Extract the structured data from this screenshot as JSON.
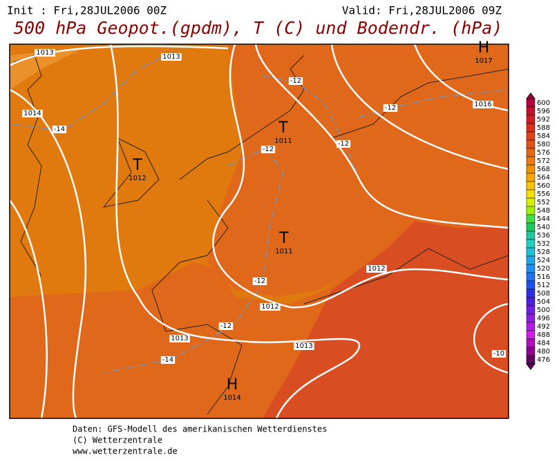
{
  "header": {
    "init": "Init : Fri,28JUL2006 00Z",
    "valid": "Valid: Fri,28JUL2006 09Z",
    "title": "500 hPa Geopot.(gpdm), T (C) und Bodendr. (hPa)"
  },
  "isobar_labels": [
    "1013",
    "1013",
    "1014",
    "1016",
    "1012",
    "1012",
    "1013",
    "1013"
  ],
  "temperature_labels": [
    "-12",
    "-12",
    "-12",
    "-12",
    "-12",
    "-12",
    "-14",
    "-14",
    "-10"
  ],
  "pressure_centers": [
    {
      "symbol": "T",
      "value": "1011"
    },
    {
      "symbol": "T",
      "value": "1012"
    },
    {
      "symbol": "T",
      "value": "1011"
    },
    {
      "symbol": "H",
      "value": "1014"
    },
    {
      "symbol": "H",
      "value": "1017"
    }
  ],
  "colorbar": {
    "levels": [
      "600",
      "596",
      "592",
      "588",
      "584",
      "580",
      "576",
      "572",
      "568",
      "564",
      "560",
      "556",
      "552",
      "548",
      "544",
      "540",
      "536",
      "532",
      "528",
      "524",
      "520",
      "516",
      "512",
      "508",
      "504",
      "500",
      "496",
      "492",
      "488",
      "484",
      "480",
      "476"
    ],
    "colors": [
      "#b0003a",
      "#c4102c",
      "#d21e20",
      "#dc2e1c",
      "#e0421c",
      "#e0541c",
      "#e46a14",
      "#ec7c10",
      "#f09000",
      "#f6a800",
      "#f8c400",
      "#f8e000",
      "#d4f000",
      "#9ef000",
      "#40e040",
      "#20c860",
      "#20c8a0",
      "#20d0c0",
      "#20c0d8",
      "#20a8e8",
      "#2090f0",
      "#2070f0",
      "#2050f0",
      "#3030e0",
      "#5020e0",
      "#7020e0",
      "#9020e0",
      "#b020e0",
      "#d020e0",
      "#b010c0",
      "#900090",
      "#600060"
    ]
  },
  "footer": [
    "Daten: GFS-Modell des amerikanischen Wetterdienstes",
    "(C) Wetterzentrale",
    "www.wetterzentrale.de"
  ]
}
